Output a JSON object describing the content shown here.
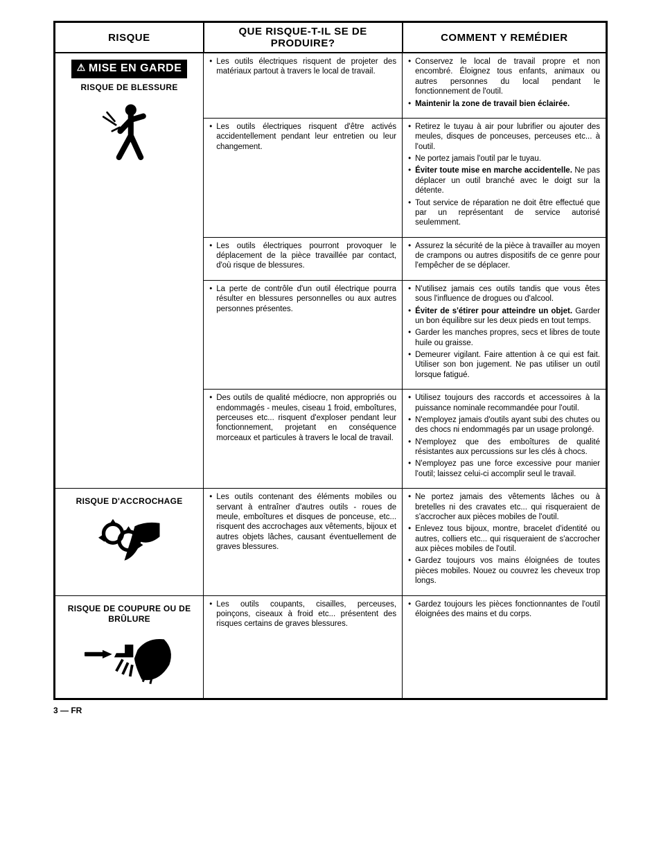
{
  "headers": {
    "risk": "RISQUE",
    "hazard": "QUE RISQUE-T-IL SE DE PRODUIRE?",
    "fix": "COMMENT Y REMÉDIER"
  },
  "rows": [
    {
      "risk": {
        "badge": "MISE EN GARDE",
        "title": "RISQUE DE BLESSURE",
        "icon": "person-impact-icon"
      },
      "hazards": [
        "Les outils électriques risquent de projeter des matériaux partout à travers le local de travail.",
        "Les outils électriques risquent d'être activés accidentellement pendant leur entretien ou leur changement.",
        "Les outils électriques pourront provoquer le déplacement de la pièce travaillée par contact, d'où risque de blessures.",
        "La perte de contrôle d'un outil électrique pourra résulter en blessures personnelles ou aux autres personnes présentes.",
        "Des outils de qualité médiocre, non appropriés ou endommagés - meules, ciseau 1 froid, emboîtures, perceuses etc... risquent d'exploser pendant leur fonctionnement, projetant en conséquence morceaux et particules à travers le local de travail."
      ],
      "remedies": [
        [
          {
            "t": "Conservez le local de travail propre et non encombré. Éloignez tous enfants, animaux ou autres personnes du local pendant le fonctionnement de l'outil."
          },
          {
            "t": "Maintenir la zone de travail bien éclairée.",
            "b": true
          }
        ],
        [
          {
            "t": "Retirez le tuyau à air pour lubrifier ou ajouter des meules, disques de ponceuses, perceuses etc... à l'outil."
          },
          {
            "t": "Ne portez jamais l'outil par le tuyau."
          },
          {
            "t": "Éviter toute mise en marche accidentelle.",
            "b": true,
            "tail": " Ne pas déplacer un outil branché avec le doigt sur la détente."
          },
          {
            "t": "Tout service de réparation ne doit être effectué que par un représentant de service autorisé seulemment."
          }
        ],
        [
          {
            "t": "Assurez la sécurité de la pièce à travailler au moyen de crampons ou autres dispositifs de ce genre pour l'empêcher de se déplacer."
          }
        ],
        [
          {
            "t": "N'utilisez jamais ces outils tandis que vous êtes sous l'influence de drogues ou d'alcool."
          },
          {
            "t": "Éviter de s'étirer pour atteindre un objet.",
            "b": true,
            "tail": " Garder un bon équilibre sur les deux pieds en tout temps."
          },
          {
            "t": "Garder les manches propres, secs et libres de toute huile ou graisse."
          },
          {
            "t": "Demeurer vigilant. Faire attention à ce qui est fait. Utiliser son bon jugement. Ne  pas utiliser un outil lorsque fatigué."
          }
        ],
        [
          {
            "t": "Utilisez toujours des raccords et accessoires à la puissance nominale recommandée pour l'outil."
          },
          {
            "t": "N'employez jamais d'outils ayant subi des chutes ou des chocs ni endommagés par un usage prolongé."
          },
          {
            "t": "N'employez que des emboîtures de qualité résistantes aux percussions sur les clés à chocs."
          },
          {
            "t": "N'employez pas une force excessive pour manier l'outil; laissez celui-ci accomplir seul le travail."
          }
        ]
      ]
    },
    {
      "risk": {
        "title": "RISQUE D'ACCROCHAGE",
        "icon": "entanglement-icon"
      },
      "hazards": [
        "Les outils contenant des éléments mobiles ou servant à entraîner d'autres outils - roues de meule, emboîtures et disques de ponceuse, etc... risquent des accrochages aux vêtements, bijoux et autres objets lâches, causant éventuellement de graves blessures."
      ],
      "remedies": [
        [
          {
            "t": "Ne portez jamais des vêtements lâches ou à bretelles ni des cravates etc... qui risqueraient de s'accrocher aux pièces mobiles de l'outil."
          },
          {
            "t": "Enlevez tous bijoux, montre, bracelet d'identité ou autres, colliers etc... qui risqueraient de s'accrocher aux pièces mobiles de l'outil."
          },
          {
            "t": "Gardez toujours vos mains éloignées de toutes pièces mobiles. Nouez ou couvrez les cheveux trop longs."
          }
        ]
      ]
    },
    {
      "risk": {
        "title": "RISQUE DE COUPURE OU DE BRÛLURE",
        "icon": "cut-burn-icon"
      },
      "hazards": [
        "Les outils coupants, cisailles, perceuses, poinçons, ciseaux à froid etc... présentent des risques certains de graves blessures."
      ],
      "remedies": [
        [
          {
            "t": "Gardez toujours les pièces fonctionnantes de l'outil éloignées des mains et du corps."
          }
        ]
      ]
    }
  ],
  "footer": "3 — FR"
}
